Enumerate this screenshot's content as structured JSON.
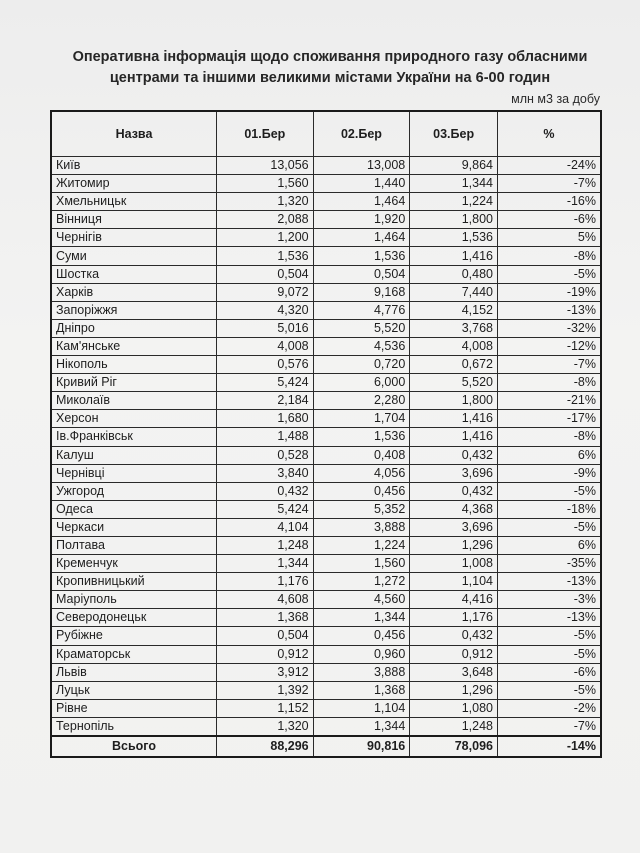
{
  "title_line1": "Оперативна інформація щодо споживання природного газу обласними",
  "title_line2": "центрами та іншими великими містами України на 6-00 годин",
  "unit": "млн м3 за добу",
  "columns": [
    "Назва",
    "01.Бер",
    "02.Бер",
    "03.Бер",
    "%"
  ],
  "rows": [
    [
      "Київ",
      "13,056",
      "13,008",
      "9,864",
      "-24%"
    ],
    [
      "Житомир",
      "1,560",
      "1,440",
      "1,344",
      "-7%"
    ],
    [
      "Хмельницьк",
      "1,320",
      "1,464",
      "1,224",
      "-16%"
    ],
    [
      "Вінниця",
      "2,088",
      "1,920",
      "1,800",
      "-6%"
    ],
    [
      "Чернігів",
      "1,200",
      "1,464",
      "1,536",
      "5%"
    ],
    [
      "Суми",
      "1,536",
      "1,536",
      "1,416",
      "-8%"
    ],
    [
      "Шостка",
      "0,504",
      "0,504",
      "0,480",
      "-5%"
    ],
    [
      "Харків",
      "9,072",
      "9,168",
      "7,440",
      "-19%"
    ],
    [
      "Запоріжжя",
      "4,320",
      "4,776",
      "4,152",
      "-13%"
    ],
    [
      "Дніпро",
      "5,016",
      "5,520",
      "3,768",
      "-32%"
    ],
    [
      "Кам'янське",
      "4,008",
      "4,536",
      "4,008",
      "-12%"
    ],
    [
      "Нікополь",
      "0,576",
      "0,720",
      "0,672",
      "-7%"
    ],
    [
      "Кривий Ріг",
      "5,424",
      "6,000",
      "5,520",
      "-8%"
    ],
    [
      "Миколаїв",
      "2,184",
      "2,280",
      "1,800",
      "-21%"
    ],
    [
      "Херсон",
      "1,680",
      "1,704",
      "1,416",
      "-17%"
    ],
    [
      "Ів.Франківськ",
      "1,488",
      "1,536",
      "1,416",
      "-8%"
    ],
    [
      "Калуш",
      "0,528",
      "0,408",
      "0,432",
      "6%"
    ],
    [
      "Чернівці",
      "3,840",
      "4,056",
      "3,696",
      "-9%"
    ],
    [
      "Ужгород",
      "0,432",
      "0,456",
      "0,432",
      "-5%"
    ],
    [
      "Одеса",
      "5,424",
      "5,352",
      "4,368",
      "-18%"
    ],
    [
      "Черкаси",
      "4,104",
      "3,888",
      "3,696",
      "-5%"
    ],
    [
      "Полтава",
      "1,248",
      "1,224",
      "1,296",
      "6%"
    ],
    [
      "Кременчук",
      "1,344",
      "1,560",
      "1,008",
      "-35%"
    ],
    [
      "Кропивницький",
      "1,176",
      "1,272",
      "1,104",
      "-13%"
    ],
    [
      "Маріуполь",
      "4,608",
      "4,560",
      "4,416",
      "-3%"
    ],
    [
      "Северодонецьк",
      "1,368",
      "1,344",
      "1,176",
      "-13%"
    ],
    [
      "Рубіжне",
      "0,504",
      "0,456",
      "0,432",
      "-5%"
    ],
    [
      "Краматорськ",
      "0,912",
      "0,960",
      "0,912",
      "-5%"
    ],
    [
      "Львів",
      "3,912",
      "3,888",
      "3,648",
      "-6%"
    ],
    [
      "Луцьк",
      "1,392",
      "1,368",
      "1,296",
      "-5%"
    ],
    [
      "Рівне",
      "1,152",
      "1,104",
      "1,080",
      "-2%"
    ],
    [
      "Тернопіль",
      "1,320",
      "1,344",
      "1,248",
      "-7%"
    ]
  ],
  "total": [
    "Всього",
    "88,296",
    "90,816",
    "78,096",
    "-14%"
  ]
}
